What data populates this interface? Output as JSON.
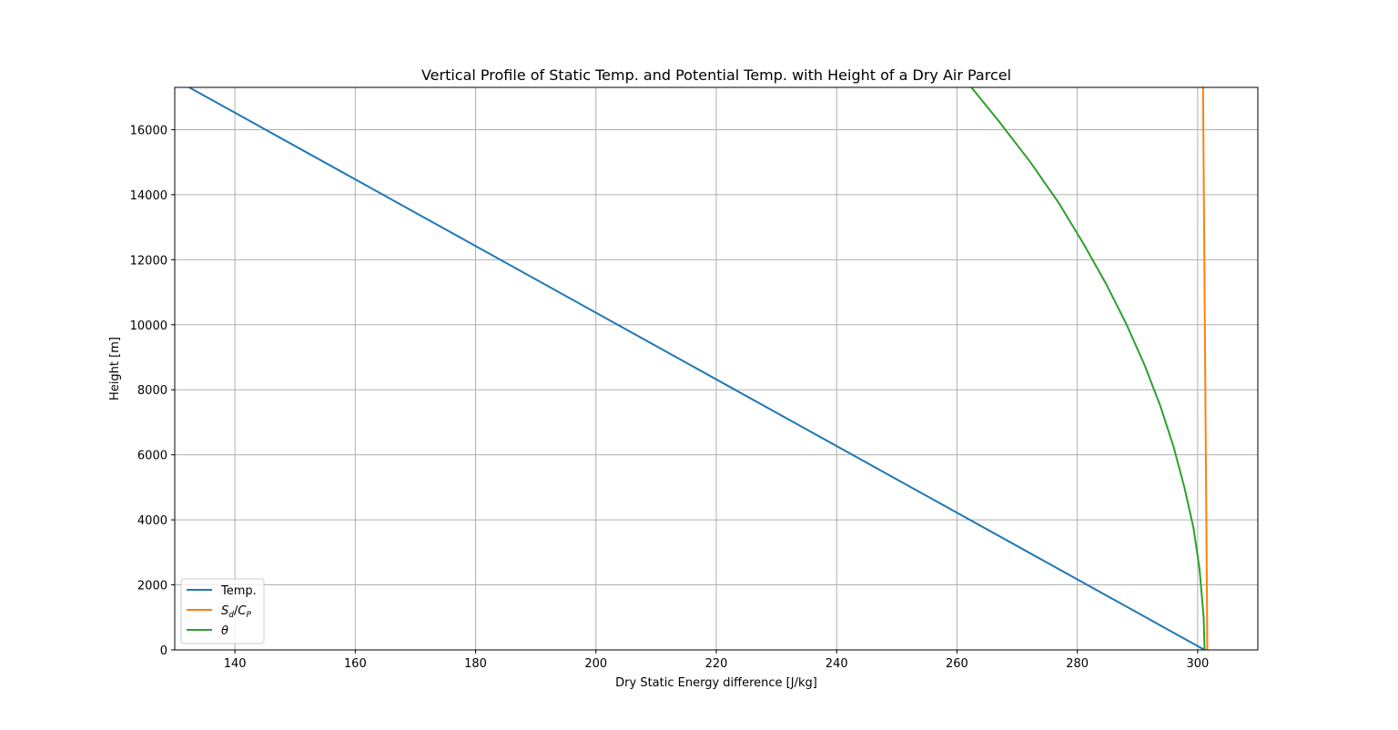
{
  "chart_data": {
    "type": "line",
    "title": "Vertical Profile of Static Temp. and Potential Temp. with Height of a Dry Air Parcel",
    "xlabel": "Dry Static Energy difference [J/kg]",
    "ylabel": "Height [m]",
    "xlim": [
      130,
      310
    ],
    "ylim": [
      0,
      17300
    ],
    "x_ticks": [
      "140",
      "160",
      "180",
      "200",
      "220",
      "240",
      "260",
      "280",
      "300"
    ],
    "y_ticks": [
      "0",
      "2000",
      "4000",
      "6000",
      "8000",
      "10000",
      "12000",
      "14000",
      "16000"
    ],
    "grid": true,
    "legend_position": "lower-left",
    "series": [
      {
        "name": "Temp.",
        "color": "#1f77b4",
        "x": [
          301.15,
          132.41
        ],
        "y": [
          0,
          17300
        ]
      },
      {
        "name": "S_d/C_P",
        "color": "#ff7f0e",
        "x": [
          301.6,
          300.9
        ],
        "y": [
          0,
          17300
        ]
      },
      {
        "name": "θ",
        "color": "#2ca02c",
        "x": [
          301.15,
          301.0,
          300.3,
          299.3,
          297.8,
          296.0,
          293.8,
          291.2,
          288.2,
          284.8,
          281.0,
          276.9,
          272.2,
          267.0,
          262.4
        ],
        "y": [
          0,
          1000,
          2500,
          3750,
          5000,
          6250,
          7500,
          8750,
          10000,
          11250,
          12500,
          13750,
          15000,
          16250,
          17300
        ]
      }
    ]
  }
}
